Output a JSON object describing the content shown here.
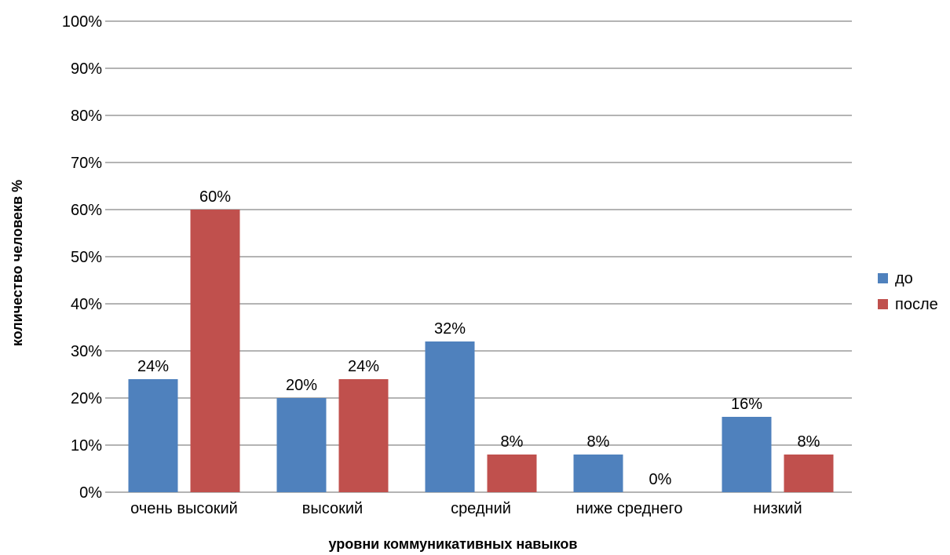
{
  "chart_data": {
    "type": "bar",
    "title": "",
    "xlabel": "уровни коммуникативных навыков",
    "ylabel": "количество человекв %",
    "categories": [
      "очень высокий",
      "высокий",
      "средний",
      "ниже среднего",
      "низкий"
    ],
    "series": [
      {
        "name": "до",
        "color": "#4F81BD",
        "values": [
          24,
          20,
          32,
          8,
          16
        ],
        "labels": [
          "24%",
          "20%",
          "32%",
          "8%",
          "16%"
        ]
      },
      {
        "name": "после",
        "color": "#C0504D",
        "values": [
          60,
          24,
          8,
          0,
          8
        ],
        "labels": [
          "60%",
          "24%",
          "8%",
          "0%",
          "8%"
        ]
      }
    ],
    "ylim": [
      0,
      100
    ],
    "yticks": [
      "0%",
      "10%",
      "20%",
      "30%",
      "40%",
      "50%",
      "60%",
      "70%",
      "80%",
      "90%",
      "100%"
    ],
    "grid": true,
    "legend": "right"
  }
}
